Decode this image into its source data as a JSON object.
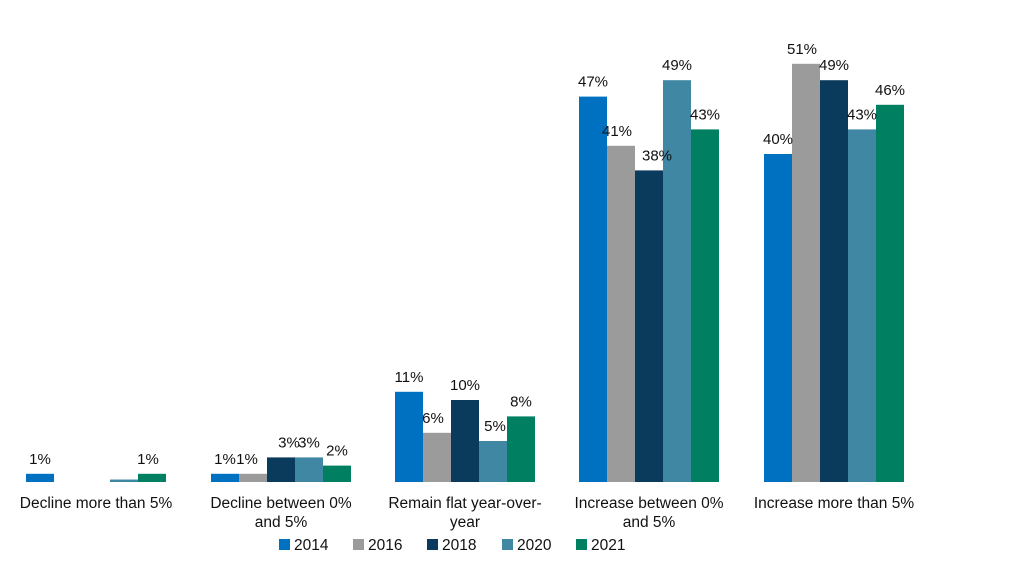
{
  "chart_data": {
    "type": "bar",
    "categories": [
      [
        "Decline more than 5%"
      ],
      [
        "Decline between 0%",
        "and 5%"
      ],
      [
        "Remain flat year-over-",
        "year"
      ],
      [
        "Increase between 0%",
        "and 5%"
      ],
      [
        "Increase more than 5%"
      ]
    ],
    "series": [
      {
        "name": "2014",
        "color": "#0070c0",
        "values": [
          1,
          1,
          11,
          47,
          40
        ]
      },
      {
        "name": "2016",
        "color": "#9b9b9b",
        "values": [
          null,
          1,
          6,
          41,
          51
        ]
      },
      {
        "name": "2018",
        "color": "#0b3b5c",
        "values": [
          null,
          3,
          10,
          38,
          49
        ]
      },
      {
        "name": "2020",
        "color": "#3f87a3",
        "values": [
          0.3,
          3,
          5,
          49,
          43
        ]
      },
      {
        "name": "2021",
        "color": "#008060",
        "values": [
          1,
          2,
          8,
          43,
          46
        ]
      }
    ],
    "value_labels": [
      [
        "1%",
        "1%",
        "11%",
        "47%",
        "40%"
      ],
      [
        "",
        "1%",
        "6%",
        "41%",
        "51%"
      ],
      [
        "",
        "3%",
        "10%",
        "38%",
        "49%"
      ],
      [
        "",
        "3%",
        "5%",
        "49%",
        "43%"
      ],
      [
        "1%",
        "2%",
        "8%",
        "43%",
        "46%"
      ]
    ],
    "ylim": [
      0,
      54
    ],
    "grid": false,
    "legend_position": "bottom",
    "title": "",
    "xlabel": "",
    "ylabel": ""
  }
}
